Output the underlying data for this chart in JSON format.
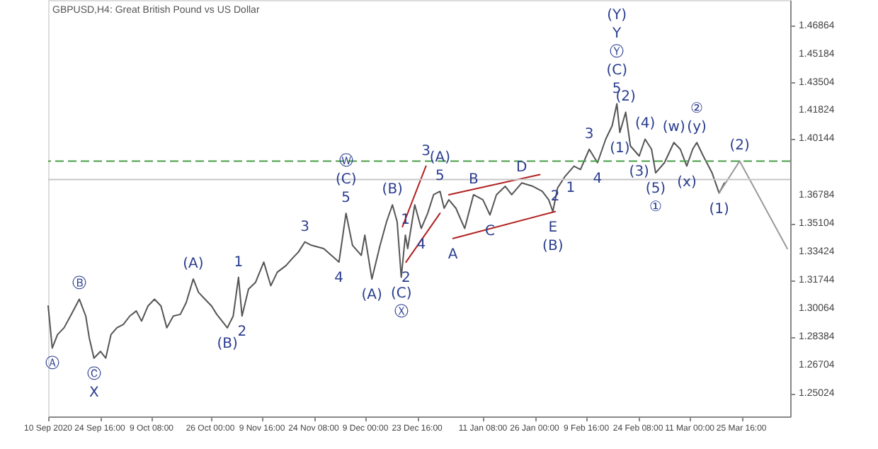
{
  "chart_data": {
    "type": "line",
    "title": "GBPUSD,H4: Great British Pound vs US Dollar",
    "grid": false,
    "marker": "none",
    "xlim": [
      "2020-09-10T00:00",
      "2021-04-08T12:00"
    ],
    "xticks": [
      {
        "value": "2020-09-10",
        "label": "10 Sep 2020"
      },
      {
        "value": "2020-09-24T16:00",
        "label": "24 Sep 16:00"
      },
      {
        "value": "2020-10-09T08:00",
        "label": "9 Oct 08:00"
      },
      {
        "value": "2020-10-26T00:00",
        "label": "26 Oct 00:00"
      },
      {
        "value": "2020-11-09T16:00",
        "label": "9 Nov 16:00"
      },
      {
        "value": "2020-11-24T08:00",
        "label": "24 Nov 08:00"
      },
      {
        "value": "2020-12-09T00:00",
        "label": "9 Dec 00:00"
      },
      {
        "value": "2020-12-23T16:00",
        "label": "23 Dec 16:00"
      },
      {
        "value": "2021-01-11T08:00",
        "label": "11 Jan 08:00"
      },
      {
        "value": "2021-01-26T00:00",
        "label": "26 Jan 00:00"
      },
      {
        "value": "2021-02-09T16:00",
        "label": "9 Feb 16:00"
      },
      {
        "value": "2021-02-24T08:00",
        "label": "24 Feb 08:00"
      },
      {
        "value": "2021-03-11T00:00",
        "label": "11 Mar 00:00"
      },
      {
        "value": "2021-03-25T16:00",
        "label": "25 Mar 16:00"
      }
    ],
    "ylim": [
      1.2364,
      1.4836
    ],
    "yticks": [
      1.25024,
      1.26704,
      1.28384,
      1.30064,
      1.31744,
      1.33424,
      1.35104,
      1.36784,
      1.40144,
      1.41824,
      1.43504,
      1.45184,
      1.46864
    ],
    "series": [
      {
        "color": "#555555",
        "x": [
          "2020-09-10T00:00",
          "2020-09-11T04:00",
          "2020-09-12T16:00",
          "2020-09-14T12:00",
          "2020-09-16T08:00",
          "2020-09-18T20:00",
          "2020-09-20T16:00",
          "2020-09-21T16:00",
          "2020-09-23T00:00",
          "2020-09-24T20:00",
          "2020-09-26T08:00",
          "2020-09-27T20:00",
          "2020-09-29T12:00",
          "2020-10-01T08:00",
          "2020-10-03T04:00",
          "2020-10-05T00:00",
          "2020-10-06T12:00",
          "2020-10-08T08:00",
          "2020-10-10T04:00",
          "2020-10-12T00:00",
          "2020-10-13T16:00",
          "2020-10-15T12:00",
          "2020-10-17T12:00",
          "2020-10-19T04:00",
          "2020-10-21T04:00",
          "2020-10-22T16:00",
          "2020-10-24T12:00",
          "2020-10-26T08:00",
          "2020-10-27T20:00",
          "2020-10-30T20:00",
          "2020-11-01T12:00",
          "2020-11-03T00:00",
          "2020-11-04T00:00",
          "2020-11-05T20:00",
          "2020-11-07T20:00",
          "2020-11-10T04:00",
          "2020-11-12T04:00",
          "2020-11-14T00:00",
          "2020-11-16T12:00",
          "2020-11-18T04:00",
          "2020-11-20T00:00",
          "2020-11-21T20:00",
          "2020-11-23T16:00",
          "2020-11-27T04:00",
          "2020-12-01T12:00",
          "2020-12-03T12:00",
          "2020-12-05T08:00",
          "2020-12-07T20:00",
          "2020-12-08T20:00",
          "2020-12-10T20:00",
          "2020-12-13T04:00",
          "2020-12-15T00:00",
          "2020-12-16T16:00",
          "2020-12-18T00:00",
          "2020-12-19T04:00",
          "2020-12-20T08:00",
          "2020-12-21T00:00",
          "2020-12-23T00:00",
          "2020-12-24T20:00",
          "2020-12-26T16:00",
          "2020-12-28T08:00",
          "2020-12-30T04:00",
          "2020-12-31T08:00",
          "2021-01-01T16:00",
          "2021-01-03T16:00",
          "2021-01-06T04:00",
          "2021-01-08T16:00",
          "2021-01-11T08:00",
          "2021-01-13T08:00",
          "2021-01-15T04:00",
          "2021-01-17T16:00",
          "2021-01-19T12:00",
          "2021-01-22T08:00",
          "2021-01-25T12:00",
          "2021-01-28T04:00",
          "2021-01-30T00:00",
          "2021-01-31T04:00",
          "2021-02-01T12:00",
          "2021-02-03T16:00",
          "2021-02-06T04:00",
          "2021-02-08T00:00",
          "2021-02-10T12:00",
          "2021-02-12T20:00",
          "2021-02-15T04:00",
          "2021-02-17T00:00",
          "2021-02-18T08:00",
          "2021-02-19T04:00",
          "2021-02-20T20:00",
          "2021-02-22T04:00",
          "2021-02-24T16:00",
          "2021-02-26T08:00",
          "2021-02-28T04:00",
          "2021-03-01T08:00",
          "2021-03-03T20:00",
          "2021-03-06T12:00",
          "2021-03-08T08:00",
          "2021-03-10T04:00",
          "2021-03-11T20:00",
          "2021-03-13T00:00",
          "2021-03-14T20:00",
          "2021-03-17T08:00",
          "2021-03-19T08:00",
          "2021-03-20T20:00"
        ],
        "values": [
          1.302,
          1.277,
          1.285,
          1.289,
          1.296,
          1.306,
          1.296,
          1.283,
          1.271,
          1.275,
          1.271,
          1.285,
          1.289,
          1.291,
          1.296,
          1.299,
          1.293,
          1.302,
          1.306,
          1.302,
          1.289,
          1.296,
          1.297,
          1.304,
          1.318,
          1.31,
          1.306,
          1.302,
          1.297,
          1.289,
          1.296,
          1.319,
          1.296,
          1.312,
          1.316,
          1.328,
          1.314,
          1.322,
          1.326,
          1.33,
          1.334,
          1.34,
          1.338,
          1.336,
          1.328,
          1.357,
          1.338,
          1.332,
          1.344,
          1.318,
          1.338,
          1.352,
          1.362,
          1.352,
          1.319,
          1.344,
          1.336,
          1.362,
          1.348,
          1.357,
          1.368,
          1.37,
          1.36,
          1.365,
          1.36,
          1.348,
          1.368,
          1.365,
          1.356,
          1.368,
          1.373,
          1.368,
          1.375,
          1.373,
          1.37,
          1.365,
          1.358,
          1.372,
          1.379,
          1.385,
          1.383,
          1.395,
          1.387,
          1.401,
          1.409,
          1.422,
          1.405,
          1.417,
          1.397,
          1.391,
          1.401,
          1.395,
          1.381,
          1.387,
          1.399,
          1.395,
          1.385,
          1.395,
          1.399,
          1.391,
          1.381,
          1.369,
          1.375
        ]
      },
      {
        "color": "#9a9a9a",
        "x": [
          "2021-03-19T08:00",
          "2021-03-25T04:00",
          "2021-04-07T16:00"
        ],
        "values": [
          1.369,
          1.388,
          1.336
        ]
      },
      {
        "color": "#b22222",
        "x": [
          "2020-12-19T12:00",
          "2020-12-26T04:00"
        ],
        "values": [
          1.349,
          1.385
        ]
      },
      {
        "color": "#b22222",
        "x": [
          "2020-12-20T12:00",
          "2020-12-30T04:00"
        ],
        "values": [
          1.328,
          1.357
        ]
      },
      {
        "color": "#b22222",
        "x": [
          "2021-01-01T16:00",
          "2021-01-27T12:00"
        ],
        "values": [
          1.368,
          1.38
        ]
      },
      {
        "color": "#b22222",
        "x": [
          "2021-01-02T20:00",
          "2021-01-31T20:00"
        ],
        "values": [
          1.342,
          1.358
        ]
      }
    ],
    "ref_lines": [
      {
        "axis": "y",
        "value": 1.388,
        "color": "#4a9e4a",
        "line_style": "dashed"
      },
      {
        "axis": "y",
        "value": 1.377,
        "color": "#c8c8c8",
        "line_style": "solid"
      }
    ],
    "annotations": [
      {
        "text": "Ⓐ",
        "x": "2020-09-11T04:00",
        "y": 1.277
      },
      {
        "text": "Ⓑ",
        "x": "2020-09-18T20:00",
        "y": 1.306
      },
      {
        "text": "Ⓒ",
        "x": "2020-09-23T00:00",
        "y": 1.271
      },
      {
        "text": "X",
        "x": "2020-09-23T00:00",
        "y": 1.271
      },
      {
        "text": "(A)",
        "x": "2020-10-21T04:00",
        "y": 1.318
      },
      {
        "text": "(B)",
        "x": "2020-10-30T20:00",
        "y": 1.289
      },
      {
        "text": "1",
        "x": "2020-11-03T00:00",
        "y": 1.319
      },
      {
        "text": "2",
        "x": "2020-11-04T00:00",
        "y": 1.296
      },
      {
        "text": "3",
        "x": "2020-11-21T20:00",
        "y": 1.34
      },
      {
        "text": "4",
        "x": "2020-12-01T12:00",
        "y": 1.328
      },
      {
        "text": "5",
        "x": "2020-12-03T12:00",
        "y": 1.357
      },
      {
        "text": "(C)",
        "x": "2020-12-03T12:00",
        "y": 1.357
      },
      "Ⓦ",
      {
        "text": "(A)",
        "x": "2020-12-10T20:00",
        "y": 1.318
      },
      {
        "text": "(B)",
        "x": "2020-12-16T16:00",
        "y": 1.362
      },
      {
        "text": "1",
        "x": "2020-12-20T08:00",
        "y": 1.344
      },
      {
        "text": "3",
        "x": "2020-12-26T04:00",
        "y": 1.385
      },
      {
        "text": "(C)",
        "x": "2020-12-19T04:00",
        "y": 1.319
      },
      {
        "text": "Ⓧ",
        "x": "2020-12-19T04:00",
        "y": 1.319
      },
      {
        "text": "2",
        "x": "2020-12-20T12:00",
        "y": 1.328
      },
      {
        "text": "4",
        "x": "2020-12-24T20:00",
        "y": 1.348
      },
      {
        "text": "5",
        "x": "2020-12-30T04:00",
        "y": 1.37
      },
      {
        "text": "(A)",
        "x": "2020-12-30T04:00",
        "y": 1.37
      },
      {
        "text": "A",
        "x": "2021-01-02T20:00",
        "y": 1.342
      },
      {
        "text": "B",
        "x": "2021-01-08T16:00",
        "y": 1.368
      },
      {
        "text": "C",
        "x": "2021-01-13T08:00",
        "y": 1.356
      },
      {
        "text": "D",
        "x": "2021-01-22T08:00",
        "y": 1.375
      },
      {
        "text": "1",
        "x": "2021-02-01T12:00",
        "y": 1.372
      },
      {
        "text": "2",
        "x": "2021-01-31T20:00",
        "y": 1.358
      },
      {
        "text": "E",
        "x": "2021-01-31T04:00",
        "y": 1.358
      },
      {
        "text": "(B)",
        "x": "2021-01-31T04:00",
        "y": 1.358
      },
      {
        "text": "3",
        "x": "2021-02-10T12:00",
        "y": 1.395
      },
      {
        "text": "4",
        "x": "2021-02-12T20:00",
        "y": 1.387
      },
      {
        "text": "5",
        "x": "2021-02-18T08:00",
        "y": 1.422
      },
      {
        "text": "(C)",
        "x": "2021-02-18T08:00",
        "y": 1.422
      },
      "Ⓨ",
      "Y",
      "(Y)",
      {
        "text": "(1)",
        "x": "2021-02-19T04:00",
        "y": 1.405
      },
      {
        "text": "(2)",
        "x": "2021-02-20T20:00",
        "y": 1.417
      },
      {
        "text": "(3)",
        "x": "2021-02-24T16:00",
        "y": 1.391
      },
      {
        "text": "(4)",
        "x": "2021-02-26T08:00",
        "y": 1.401
      },
      {
        "text": "(5)",
        "x": "2021-03-01T08:00",
        "y": 1.381
      },
      {
        "text": "①",
        "x": "2021-03-01T08:00",
        "y": 1.381
      },
      {
        "text": "(w)",
        "x": "2021-03-06T12:00",
        "y": 1.399
      },
      {
        "text": "(x)",
        "x": "2021-03-10T04:00",
        "y": 1.385
      },
      {
        "text": "(y)",
        "x": "2021-03-13T00:00",
        "y": 1.399
      },
      {
        "text": "②",
        "x": "2021-03-13T00:00",
        "y": 1.399
      },
      {
        "text": "(1)",
        "x": "2021-03-19T08:00",
        "y": 1.369
      },
      {
        "text": "(2)",
        "x": "2021-03-25T04:00",
        "y": 1.388
      }
    ]
  }
}
